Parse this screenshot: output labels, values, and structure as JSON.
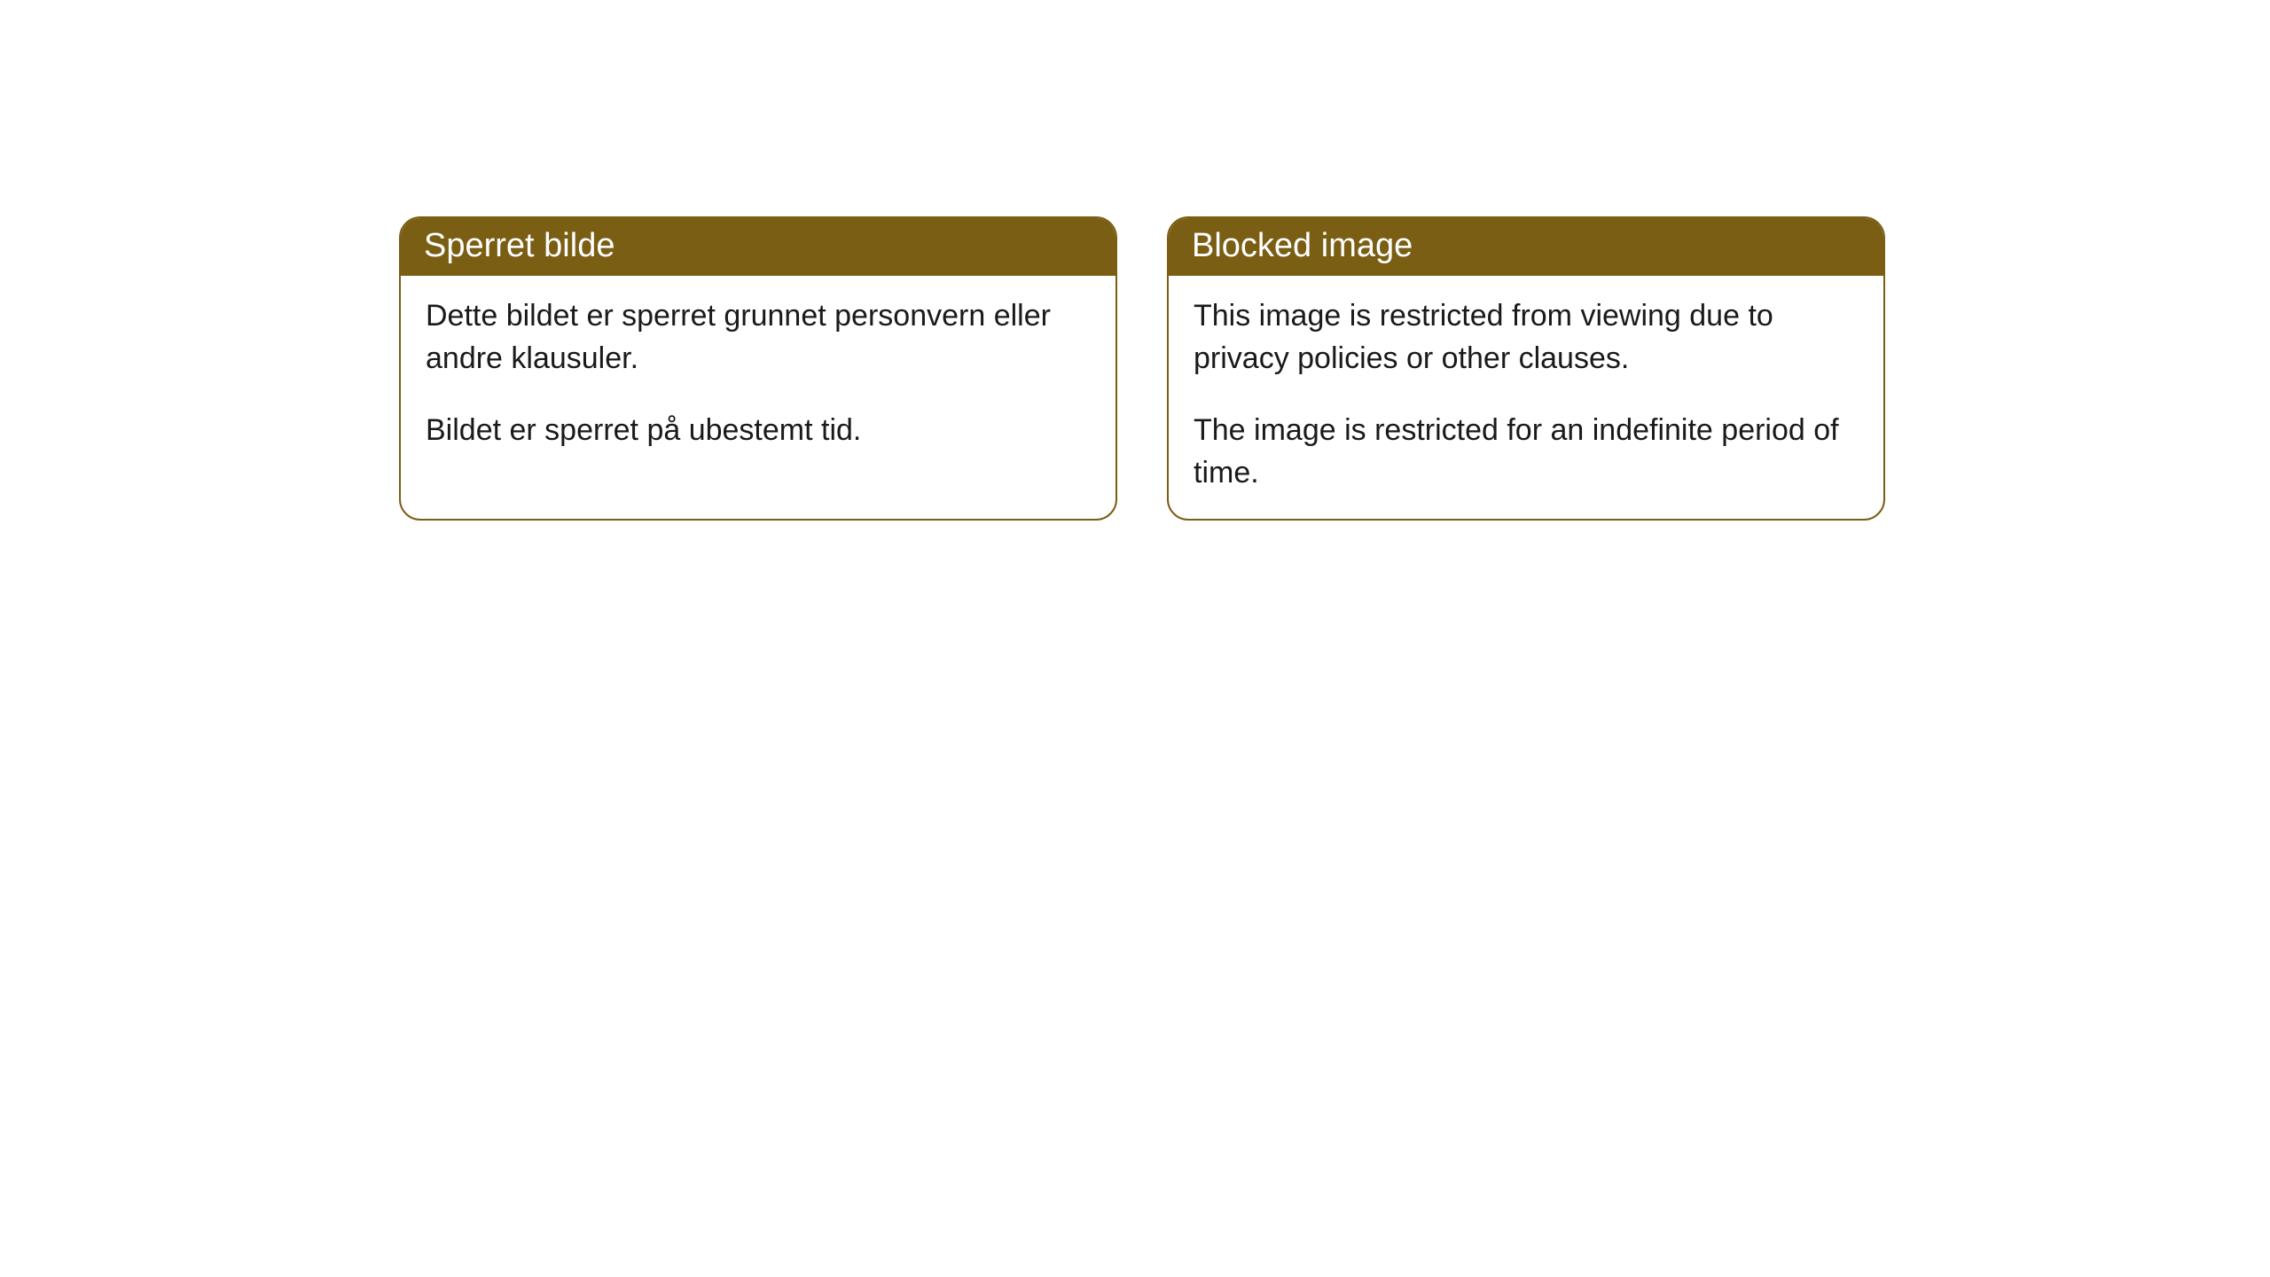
{
  "cards": [
    {
      "title": "Sperret bilde",
      "paragraph1": "Dette bildet er sperret grunnet personvern eller andre klausuler.",
      "paragraph2": "Bildet er sperret på ubestemt tid."
    },
    {
      "title": "Blocked image",
      "paragraph1": "This image is restricted from viewing due to privacy policies or other clauses.",
      "paragraph2": "The image is restricted for an indefinite period of time."
    }
  ],
  "styling": {
    "header_background": "#7a5e13",
    "header_text_color": "#ffffff",
    "border_color": "#7a5e13",
    "body_background": "#ffffff",
    "body_text_color": "#1a1a1a",
    "border_radius": 24,
    "title_fontsize": 38,
    "body_fontsize": 34
  }
}
